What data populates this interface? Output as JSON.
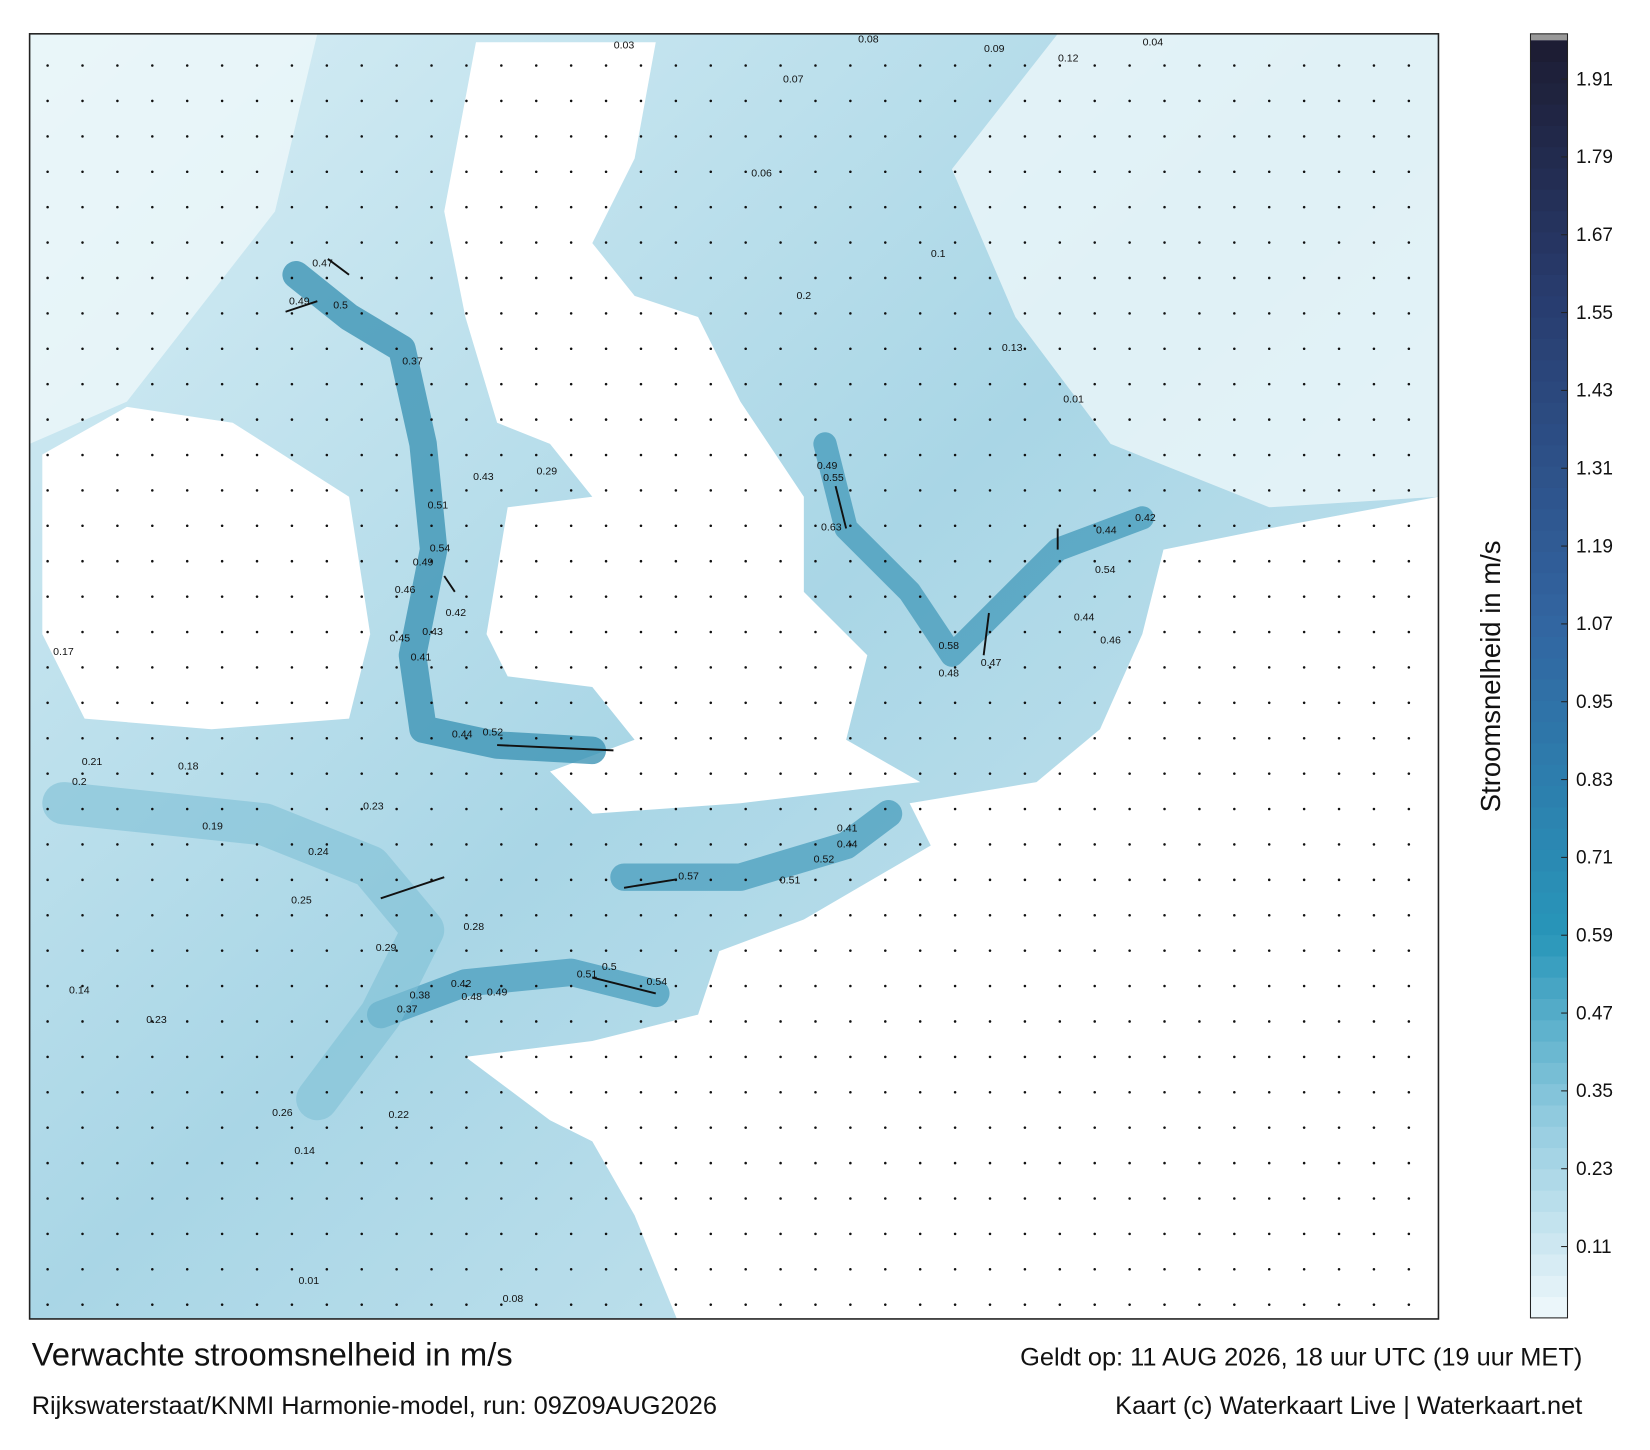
{
  "header": {
    "title": "Verwachte stroomsnelheid in m/s",
    "valid": "Geldt op: 11 AUG 2026, 18 uur UTC (19 uur MET)",
    "source": "Rijkswaterstaat/KNMI Harmonie-model, run: 09Z09AUG2026",
    "credit": "Kaart (c) Waterkaart Live | Waterkaart.net"
  },
  "colorbar": {
    "label": "Stroomsnelheid in m/s",
    "lim": [
      0,
      1.97
    ],
    "ticks": [
      0.11,
      0.23,
      0.35,
      0.47,
      0.59,
      0.71,
      0.83,
      0.95,
      1.07,
      1.19,
      1.31,
      1.43,
      1.55,
      1.67,
      1.79,
      1.91
    ]
  },
  "map": {
    "labels": [
      0.47,
      0.49,
      0.5,
      0.37,
      0.43,
      0.29,
      0.51,
      0.54,
      0.49,
      0.46,
      0.42,
      0.45,
      0.43,
      0.41,
      0.52,
      0.44,
      0.57,
      0.51,
      0.41,
      0.44,
      0.52,
      0.54,
      0.51,
      0.5,
      0.42,
      0.48,
      0.49,
      0.38,
      0.37,
      0.58,
      0.48,
      0.47,
      0.44,
      0.46,
      0.54,
      0.44,
      0.42,
      0.55,
      0.49,
      0.63,
      0.23,
      0.19,
      0.24,
      0.25,
      0.29,
      0.28,
      0.08,
      0.09,
      0.12,
      0.06,
      0.2,
      0.1,
      0.13,
      0.01,
      0.17,
      0.21,
      0.2,
      0.18,
      0.14,
      0.23,
      0.26,
      0.22,
      0.14,
      0.01,
      0.08,
      0.07,
      0.03,
      0.04
    ]
  }
}
